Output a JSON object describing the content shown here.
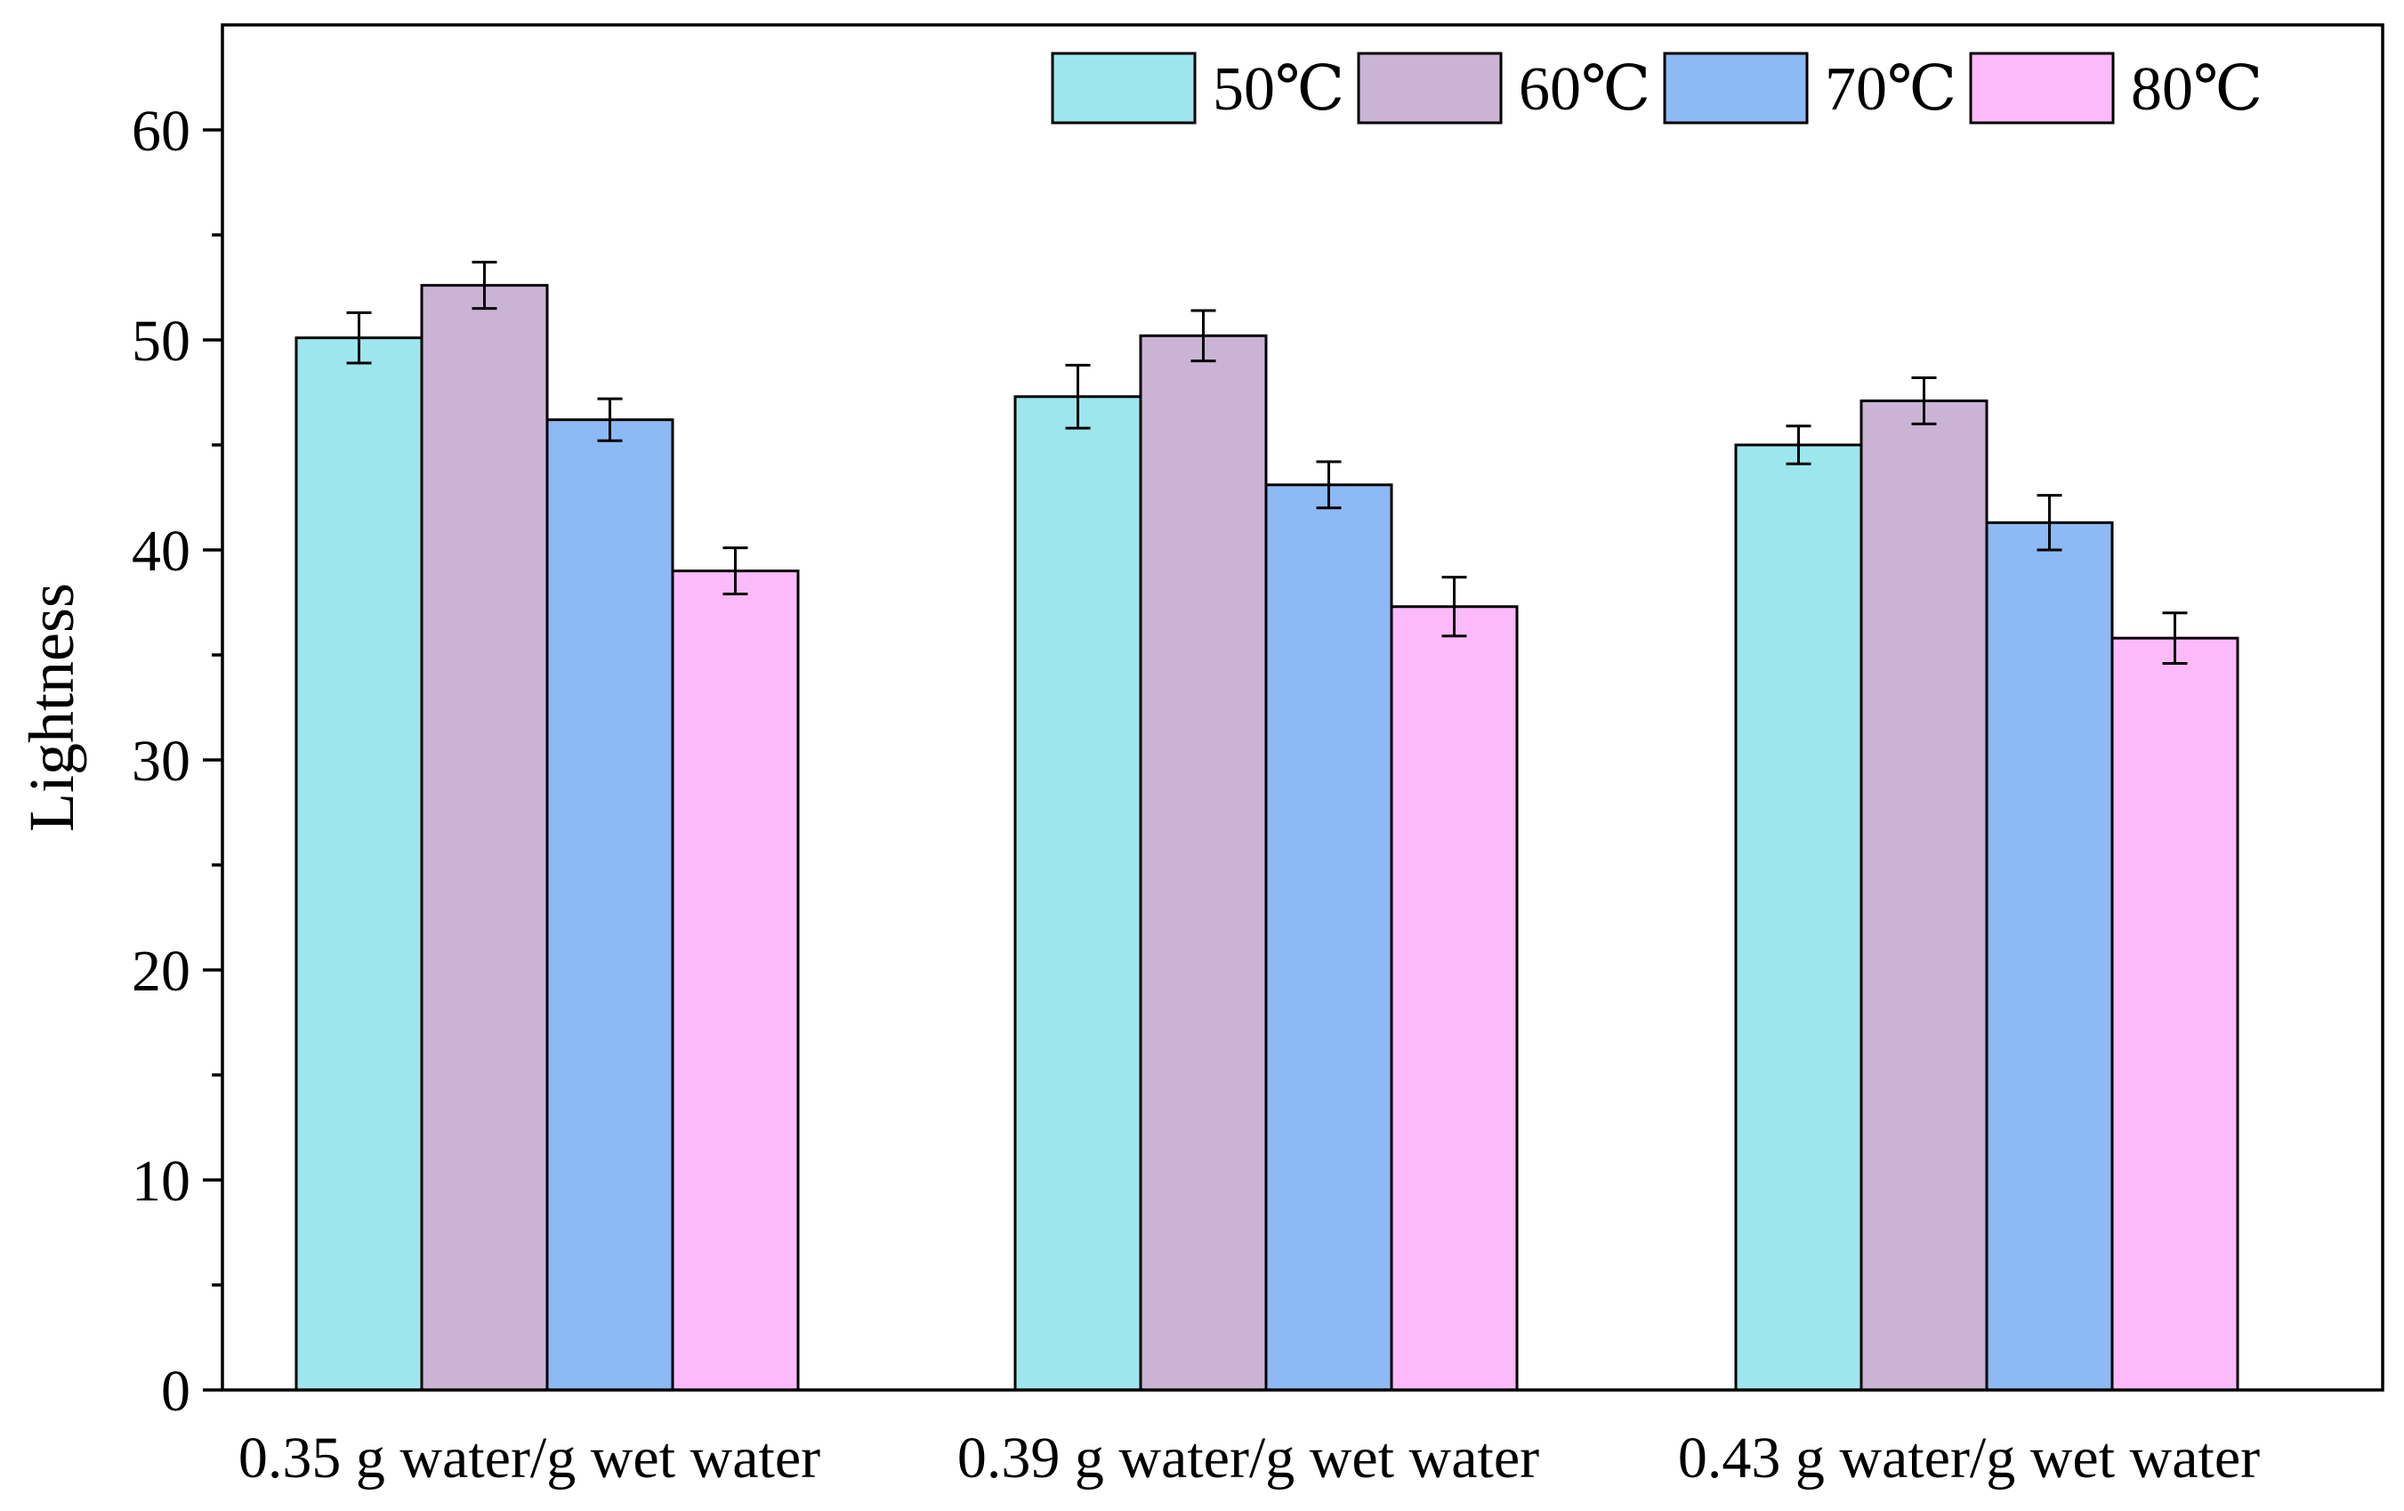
{
  "chart_data": {
    "type": "bar",
    "title": "",
    "xlabel": "",
    "ylabel": "Lightness",
    "ylim": [
      0,
      65
    ],
    "yticks": [
      0,
      10,
      20,
      30,
      40,
      50,
      60
    ],
    "minor_ticks_y": true,
    "grid": false,
    "legend_position": "top-right",
    "categories": [
      "0.35 g water/g wet water",
      "0.39 g water/g wet water",
      "0.43 g water/g wet water"
    ],
    "series": [
      {
        "name": "50℃",
        "color": "#9ee6ee",
        "values": [
          50.1,
          47.3,
          45.0
        ],
        "errors": [
          1.2,
          1.5,
          0.9
        ]
      },
      {
        "name": "60℃",
        "color": "#cbb3d6",
        "values": [
          52.6,
          50.2,
          47.1
        ],
        "errors": [
          1.1,
          1.2,
          1.1
        ]
      },
      {
        "name": "70℃",
        "color": "#8dbaf5",
        "values": [
          46.2,
          43.1,
          41.3
        ],
        "errors": [
          1.0,
          1.1,
          1.3
        ]
      },
      {
        "name": "80℃",
        "color": "#fdbafb",
        "values": [
          39.0,
          37.3,
          35.8
        ],
        "errors": [
          1.1,
          1.4,
          1.2
        ]
      }
    ]
  }
}
